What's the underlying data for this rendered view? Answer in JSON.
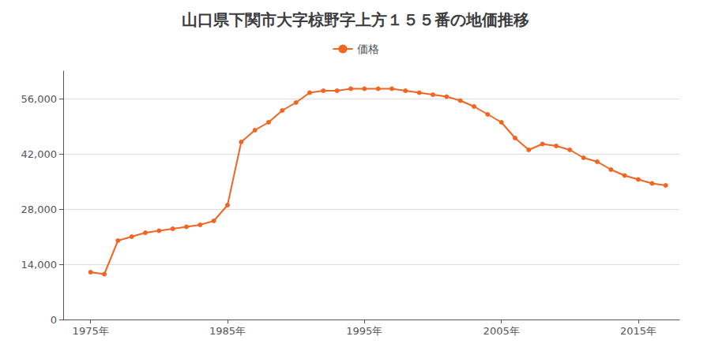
{
  "chart_data": {
    "type": "line",
    "title": "山口県下関市大字椋野字上方１５５番の地価推移",
    "x": [
      1975,
      1976,
      1977,
      1978,
      1979,
      1980,
      1981,
      1982,
      1983,
      1984,
      1985,
      1986,
      1987,
      1988,
      1989,
      1990,
      1991,
      1992,
      1993,
      1994,
      1995,
      1996,
      1997,
      1998,
      1999,
      2000,
      2001,
      2002,
      2003,
      2004,
      2005,
      2006,
      2007,
      2008,
      2009,
      2010,
      2011,
      2012,
      2013,
      2014,
      2015,
      2016,
      2017
    ],
    "series": [
      {
        "name": "価格",
        "color": "#F26522",
        "marker": "circle",
        "values": [
          12000,
          11500,
          20000,
          21000,
          22000,
          22500,
          23000,
          23500,
          24000,
          25000,
          29000,
          45000,
          48000,
          50000,
          53000,
          55000,
          57500,
          58000,
          58000,
          58500,
          58500,
          58500,
          58500,
          58000,
          57500,
          57000,
          56500,
          55500,
          54000,
          52000,
          50000,
          46000,
          43000,
          44500,
          44000,
          43000,
          41000,
          40000,
          38000,
          36500,
          35500,
          34500,
          34000
        ]
      }
    ],
    "xlim": [
      1973,
      2018
    ],
    "xticks": [
      {
        "value": 1975,
        "label": "1975年"
      },
      {
        "value": 1985,
        "label": "1985年"
      },
      {
        "value": 1995,
        "label": "1995年"
      },
      {
        "value": 2005,
        "label": "2005年"
      },
      {
        "value": 2015,
        "label": "2015年"
      }
    ],
    "ylim": [
      0,
      63000
    ],
    "yticks": [
      0,
      {
        "value": 14000,
        "label": "14,000"
      },
      {
        "value": 28000,
        "label": "28,000"
      },
      {
        "value": 42000,
        "label": "42,000"
      },
      {
        "value": 56000,
        "label": "56,000"
      }
    ],
    "grid": true,
    "legend": "top"
  }
}
